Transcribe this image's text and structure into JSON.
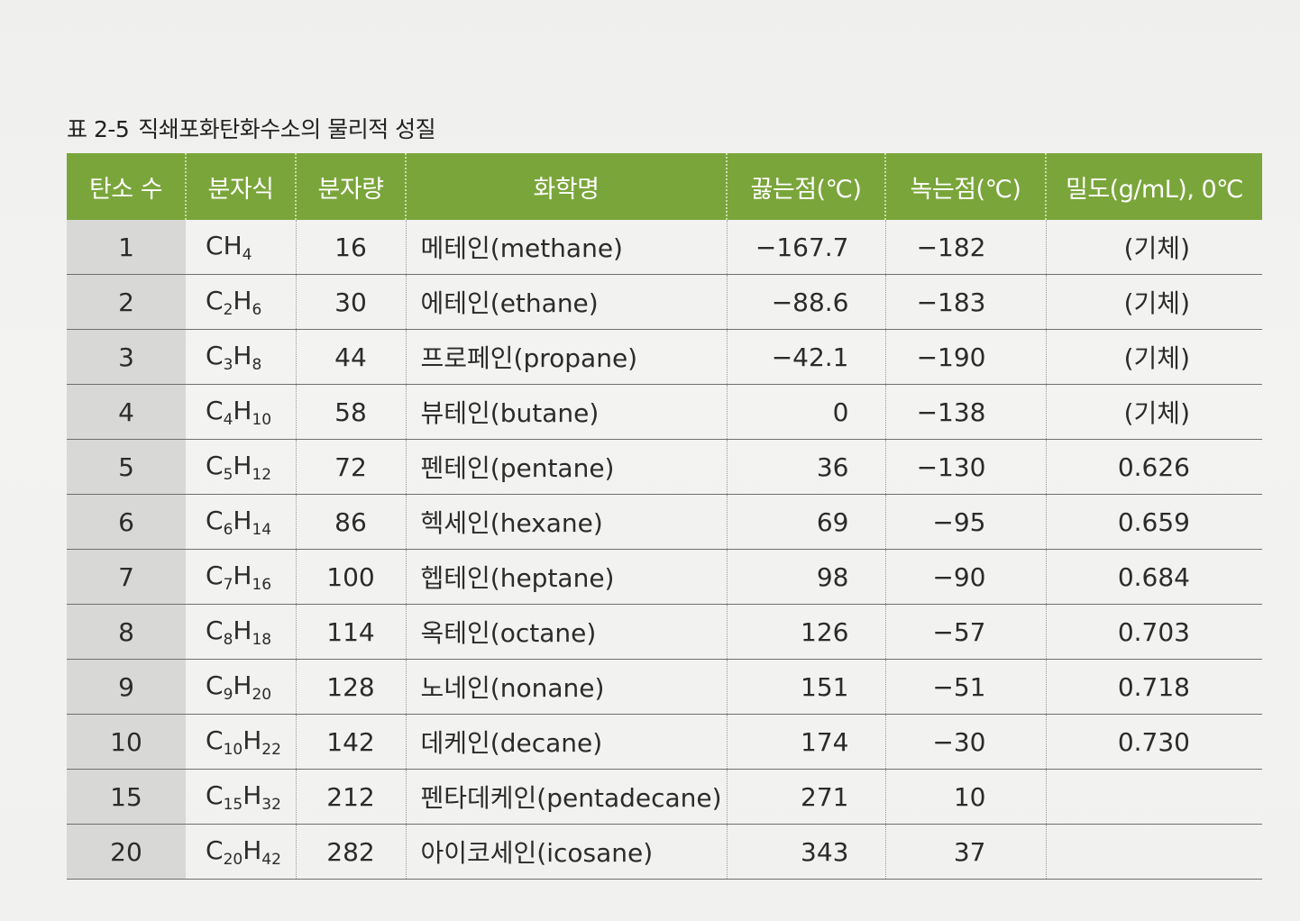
{
  "caption": {
    "number": "표 2-5",
    "title": "직쇄포화탄화수소의 물리적 성질"
  },
  "headers": [
    "탄소 수",
    "분자식",
    "분자량",
    "화학명",
    "끓는점(℃)",
    "녹는점(℃)",
    "밀도(g/mL), 0℃"
  ],
  "rows": [
    {
      "carbon": "1",
      "formula": [
        [
          "C",
          ""
        ],
        [
          "H",
          "4"
        ]
      ],
      "mass": "16",
      "name": "메테인(methane)",
      "bp": "−167.7",
      "mp": "−182",
      "density": "(기체)"
    },
    {
      "carbon": "2",
      "formula": [
        [
          "C",
          "2"
        ],
        [
          "H",
          "6"
        ]
      ],
      "mass": "30",
      "name": "에테인(ethane)",
      "bp": "−88.6",
      "mp": "−183",
      "density": "(기체)"
    },
    {
      "carbon": "3",
      "formula": [
        [
          "C",
          "3"
        ],
        [
          "H",
          "8"
        ]
      ],
      "mass": "44",
      "name": "프로페인(propane)",
      "bp": "−42.1",
      "mp": "−190",
      "density": "(기체)"
    },
    {
      "carbon": "4",
      "formula": [
        [
          "C",
          "4"
        ],
        [
          "H",
          "10"
        ]
      ],
      "mass": "58",
      "name": "뷰테인(butane)",
      "bp": "0",
      "mp": "−138",
      "density": "(기체)"
    },
    {
      "carbon": "5",
      "formula": [
        [
          "C",
          "5"
        ],
        [
          "H",
          "12"
        ]
      ],
      "mass": "72",
      "name": "펜테인(pentane)",
      "bp": "36",
      "mp": "−130",
      "density": "0.626"
    },
    {
      "carbon": "6",
      "formula": [
        [
          "C",
          "6"
        ],
        [
          "H",
          "14"
        ]
      ],
      "mass": "86",
      "name": "헥세인(hexane)",
      "bp": "69",
      "mp": "−95",
      "density": "0.659"
    },
    {
      "carbon": "7",
      "formula": [
        [
          "C",
          "7"
        ],
        [
          "H",
          "16"
        ]
      ],
      "mass": "100",
      "name": "헵테인(heptane)",
      "bp": "98",
      "mp": "−90",
      "density": "0.684"
    },
    {
      "carbon": "8",
      "formula": [
        [
          "C",
          "8"
        ],
        [
          "H",
          "18"
        ]
      ],
      "mass": "114",
      "name": "옥테인(octane)",
      "bp": "126",
      "mp": "−57",
      "density": "0.703"
    },
    {
      "carbon": "9",
      "formula": [
        [
          "C",
          "9"
        ],
        [
          "H",
          "20"
        ]
      ],
      "mass": "128",
      "name": "노네인(nonane)",
      "bp": "151",
      "mp": "−51",
      "density": "0.718"
    },
    {
      "carbon": "10",
      "formula": [
        [
          "C",
          "10"
        ],
        [
          "H",
          "22"
        ]
      ],
      "mass": "142",
      "name": "데케인(decane)",
      "bp": "174",
      "mp": "−30",
      "density": "0.730"
    },
    {
      "carbon": "15",
      "formula": [
        [
          "C",
          "15"
        ],
        [
          "H",
          "32"
        ]
      ],
      "mass": "212",
      "name": "펜타데케인(pentadecane)",
      "bp": "271",
      "mp": "10",
      "density": ""
    },
    {
      "carbon": "20",
      "formula": [
        [
          "C",
          "20"
        ],
        [
          "H",
          "42"
        ]
      ],
      "mass": "282",
      "name": "아이코세인(icosane)",
      "bp": "343",
      "mp": "37",
      "density": ""
    }
  ]
}
